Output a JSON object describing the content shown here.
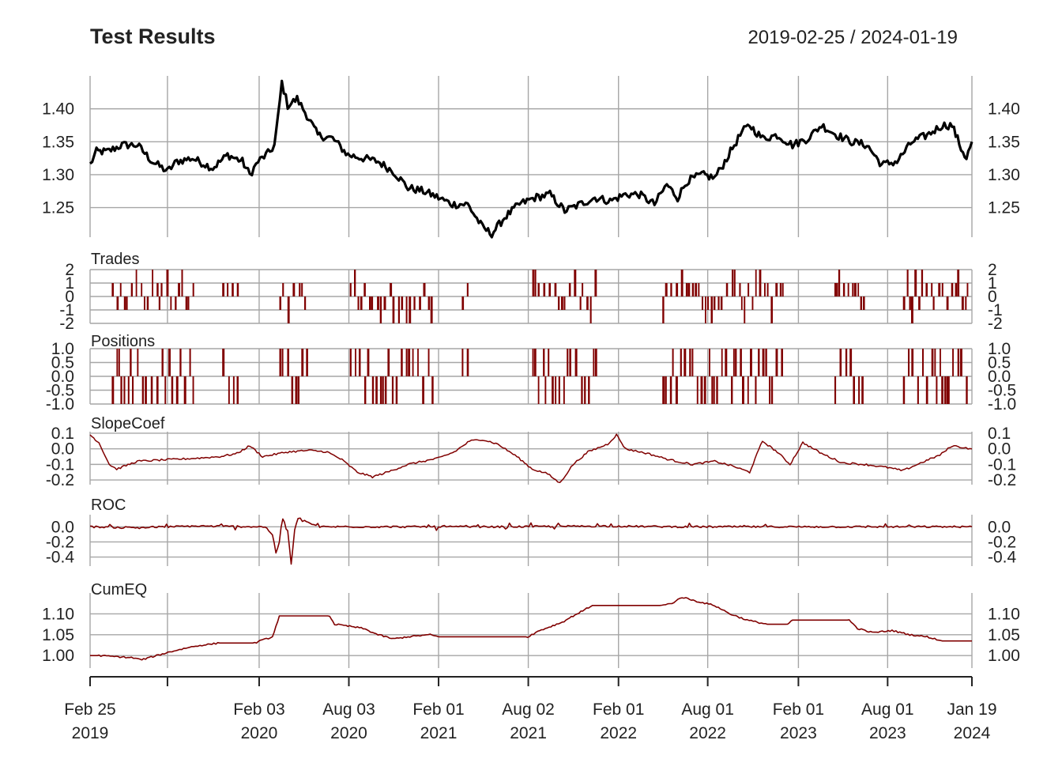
{
  "colors": {
    "price": "#000000",
    "indicator": "#800000",
    "grid": "#a6a6a6",
    "text": "#222222"
  },
  "chart_data": {
    "type": "line",
    "title": "Test Results",
    "date_range": "2019-02-25 / 2024-01-19",
    "grid": true,
    "x_ticks": [
      {
        "date": "2019-02-25",
        "month": "Feb 25",
        "year": "2019"
      },
      {
        "date": "2019-08-01",
        "month": "",
        "year": ""
      },
      {
        "date": "2020-02-03",
        "month": "Feb 03",
        "year": "2020"
      },
      {
        "date": "2020-08-03",
        "month": "Aug 03",
        "year": "2020"
      },
      {
        "date": "2021-02-01",
        "month": "Feb 01",
        "year": "2021"
      },
      {
        "date": "2021-08-02",
        "month": "Aug 02",
        "year": "2021"
      },
      {
        "date": "2022-02-01",
        "month": "Feb 01",
        "year": "2022"
      },
      {
        "date": "2022-08-01",
        "month": "Aug 01",
        "year": "2022"
      },
      {
        "date": "2023-02-01",
        "month": "Feb 01",
        "year": "2023"
      },
      {
        "date": "2023-08-01",
        "month": "Aug 01",
        "year": "2023"
      },
      {
        "date": "2024-01-19",
        "month": "Jan 19",
        "year": "2024"
      }
    ],
    "panels": [
      {
        "id": "price",
        "label": "",
        "style": "line",
        "color": "#000000",
        "ylim": [
          1.205,
          1.45
        ],
        "y_ticks": [
          "1.40",
          "1.35",
          "1.30",
          "1.25"
        ],
        "y_tick_values": [
          1.4,
          1.35,
          1.3,
          1.25
        ],
        "series": [
          [
            "2019-02-25",
            1.315
          ],
          [
            "2019-03-10",
            1.335
          ],
          [
            "2019-04-01",
            1.335
          ],
          [
            "2019-05-01",
            1.345
          ],
          [
            "2019-06-01",
            1.345
          ],
          [
            "2019-07-01",
            1.32
          ],
          [
            "2019-08-01",
            1.305
          ],
          [
            "2019-08-20",
            1.32
          ],
          [
            "2019-09-20",
            1.325
          ],
          [
            "2019-11-01",
            1.31
          ],
          [
            "2019-12-01",
            1.33
          ],
          [
            "2019-12-31",
            1.32
          ],
          [
            "2020-01-15",
            1.3
          ],
          [
            "2020-02-01",
            1.32
          ],
          [
            "2020-02-25",
            1.335
          ],
          [
            "2020-03-05",
            1.345
          ],
          [
            "2020-03-12",
            1.385
          ],
          [
            "2020-03-20",
            1.44
          ],
          [
            "2020-04-01",
            1.405
          ],
          [
            "2020-04-20",
            1.415
          ],
          [
            "2020-05-10",
            1.39
          ],
          [
            "2020-06-01",
            1.36
          ],
          [
            "2020-07-01",
            1.355
          ],
          [
            "2020-08-01",
            1.33
          ],
          [
            "2020-09-01",
            1.325
          ],
          [
            "2020-10-01",
            1.32
          ],
          [
            "2020-11-01",
            1.305
          ],
          [
            "2020-12-01",
            1.28
          ],
          [
            "2021-01-01",
            1.275
          ],
          [
            "2021-02-01",
            1.265
          ],
          [
            "2021-03-01",
            1.255
          ],
          [
            "2021-04-01",
            1.255
          ],
          [
            "2021-05-01",
            1.22
          ],
          [
            "2021-05-20",
            1.21
          ],
          [
            "2021-06-15",
            1.235
          ],
          [
            "2021-07-15",
            1.255
          ],
          [
            "2021-08-15",
            1.265
          ],
          [
            "2021-09-15",
            1.27
          ],
          [
            "2021-10-15",
            1.245
          ],
          [
            "2021-11-15",
            1.255
          ],
          [
            "2021-12-15",
            1.265
          ],
          [
            "2022-01-15",
            1.26
          ],
          [
            "2022-02-15",
            1.27
          ],
          [
            "2022-03-15",
            1.27
          ],
          [
            "2022-04-15",
            1.255
          ],
          [
            "2022-05-10",
            1.285
          ],
          [
            "2022-06-01",
            1.265
          ],
          [
            "2022-06-20",
            1.29
          ],
          [
            "2022-07-20",
            1.3
          ],
          [
            "2022-08-15",
            1.295
          ],
          [
            "2022-09-01",
            1.315
          ],
          [
            "2022-09-20",
            1.34
          ],
          [
            "2022-10-10",
            1.365
          ],
          [
            "2022-10-25",
            1.375
          ],
          [
            "2022-11-20",
            1.355
          ],
          [
            "2022-12-20",
            1.36
          ],
          [
            "2023-01-20",
            1.345
          ],
          [
            "2023-02-20",
            1.355
          ],
          [
            "2023-03-20",
            1.375
          ],
          [
            "2023-04-20",
            1.36
          ],
          [
            "2023-05-20",
            1.35
          ],
          [
            "2023-06-20",
            1.345
          ],
          [
            "2023-07-20",
            1.315
          ],
          [
            "2023-08-20",
            1.32
          ],
          [
            "2023-09-20",
            1.35
          ],
          [
            "2023-10-20",
            1.36
          ],
          [
            "2023-11-20",
            1.375
          ],
          [
            "2023-12-10",
            1.375
          ],
          [
            "2023-12-28",
            1.34
          ],
          [
            "2024-01-08",
            1.325
          ],
          [
            "2024-01-19",
            1.35
          ]
        ]
      },
      {
        "id": "trades",
        "label": "Trades",
        "style": "bars",
        "color": "#800000",
        "ylim": [
          -2,
          2
        ],
        "y_ticks": [
          "2",
          "1",
          "0",
          "-1",
          "-2"
        ],
        "y_tick_values": [
          2,
          1,
          0,
          -1,
          -2
        ],
        "active_periods": [
          [
            "2019-04-10",
            "2019-09-25"
          ],
          [
            "2019-11-20",
            "2019-12-20"
          ],
          [
            "2020-03-15",
            "2020-05-10"
          ],
          [
            "2020-08-05",
            "2021-01-25"
          ],
          [
            "2021-03-20",
            "2021-04-05"
          ],
          [
            "2021-08-10",
            "2021-12-20"
          ],
          [
            "2022-05-01",
            "2022-12-30"
          ],
          [
            "2023-04-15",
            "2023-06-15"
          ],
          [
            "2023-09-01",
            "2024-01-10"
          ]
        ]
      },
      {
        "id": "positions",
        "label": "Positions",
        "style": "bars",
        "color": "#800000",
        "ylim": [
          -1.0,
          1.0
        ],
        "y_ticks": [
          "1.0",
          "0.5",
          "0.0",
          "-0.5",
          "-1.0"
        ],
        "y_tick_values": [
          1.0,
          0.5,
          0.0,
          -0.5,
          -1.0
        ]
      },
      {
        "id": "slope",
        "label": "SlopeCoef",
        "style": "line",
        "color": "#800000",
        "ylim": [
          -0.23,
          0.11
        ],
        "y_ticks": [
          "0.1",
          "0.0",
          "-0.1",
          "-0.2"
        ],
        "y_tick_values": [
          0.1,
          0.0,
          -0.1,
          -0.2
        ],
        "series": [
          [
            "2019-02-25",
            0.09
          ],
          [
            "2019-03-15",
            0.04
          ],
          [
            "2019-04-05",
            -0.1
          ],
          [
            "2019-04-20",
            -0.13
          ],
          [
            "2019-06-01",
            -0.08
          ],
          [
            "2019-08-01",
            -0.07
          ],
          [
            "2019-10-01",
            -0.06
          ],
          [
            "2019-11-15",
            -0.05
          ],
          [
            "2019-12-20",
            -0.03
          ],
          [
            "2020-01-15",
            0.02
          ],
          [
            "2020-02-10",
            -0.05
          ],
          [
            "2020-04-01",
            -0.02
          ],
          [
            "2020-05-15",
            -0.01
          ],
          [
            "2020-06-20",
            -0.02
          ],
          [
            "2020-07-20",
            -0.07
          ],
          [
            "2020-08-20",
            -0.15
          ],
          [
            "2020-09-20",
            -0.18
          ],
          [
            "2020-10-20",
            -0.15
          ],
          [
            "2020-12-01",
            -0.1
          ],
          [
            "2021-01-01",
            -0.08
          ],
          [
            "2021-02-01",
            -0.06
          ],
          [
            "2021-03-05",
            -0.02
          ],
          [
            "2021-04-05",
            0.05
          ],
          [
            "2021-05-01",
            0.06
          ],
          [
            "2021-06-01",
            0.03
          ],
          [
            "2021-07-10",
            -0.05
          ],
          [
            "2021-08-10",
            -0.13
          ],
          [
            "2021-09-10",
            -0.16
          ],
          [
            "2021-10-05",
            -0.22
          ],
          [
            "2021-11-01",
            -0.1
          ],
          [
            "2021-12-01",
            -0.02
          ],
          [
            "2022-01-10",
            0.03
          ],
          [
            "2022-01-28",
            0.09
          ],
          [
            "2022-02-15",
            0.0
          ],
          [
            "2022-04-01",
            -0.03
          ],
          [
            "2022-05-15",
            -0.07
          ],
          [
            "2022-07-01",
            -0.1
          ],
          [
            "2022-08-15",
            -0.08
          ],
          [
            "2022-09-20",
            -0.11
          ],
          [
            "2022-10-25",
            -0.15
          ],
          [
            "2022-11-20",
            0.05
          ],
          [
            "2022-12-20",
            -0.02
          ],
          [
            "2023-01-15",
            -0.1
          ],
          [
            "2023-02-10",
            0.04
          ],
          [
            "2023-03-20",
            -0.03
          ],
          [
            "2023-05-01",
            -0.09
          ],
          [
            "2023-06-15",
            -0.1
          ],
          [
            "2023-08-01",
            -0.12
          ],
          [
            "2023-09-01",
            -0.14
          ],
          [
            "2023-10-15",
            -0.08
          ],
          [
            "2023-11-15",
            -0.04
          ],
          [
            "2023-12-10",
            0.02
          ],
          [
            "2024-01-19",
            0.0
          ]
        ]
      },
      {
        "id": "roc",
        "label": "ROC",
        "style": "line",
        "color": "#800000",
        "ylim": [
          -0.52,
          0.16
        ],
        "y_ticks": [
          "0.0",
          "-0.2",
          "-0.4"
        ],
        "y_tick_values": [
          0.0,
          -0.2,
          -0.4
        ],
        "series": [
          [
            "2019-02-25",
            0.0
          ],
          [
            "2019-06-01",
            -0.01
          ],
          [
            "2019-10-01",
            0.01
          ],
          [
            "2020-02-15",
            0.0
          ],
          [
            "2020-03-01",
            -0.1
          ],
          [
            "2020-03-08",
            -0.35
          ],
          [
            "2020-03-15",
            -0.2
          ],
          [
            "2020-03-22",
            0.1
          ],
          [
            "2020-04-01",
            -0.05
          ],
          [
            "2020-04-08",
            -0.5
          ],
          [
            "2020-04-15",
            -0.05
          ],
          [
            "2020-04-22",
            0.12
          ],
          [
            "2020-05-05",
            0.08
          ],
          [
            "2020-06-01",
            0.0
          ],
          [
            "2021-06-01",
            0.0
          ],
          [
            "2022-01-01",
            0.01
          ],
          [
            "2022-06-01",
            0.0
          ],
          [
            "2023-01-01",
            0.0
          ],
          [
            "2024-01-19",
            0.0
          ]
        ]
      },
      {
        "id": "cumeq",
        "label": "CumEQ",
        "style": "line",
        "color": "#800000",
        "ylim": [
          0.97,
          1.15
        ],
        "y_ticks": [
          "1.10",
          "1.05",
          "1.00"
        ],
        "y_tick_values": [
          1.1,
          1.05,
          1.0
        ],
        "series": [
          [
            "2019-02-25",
            1.0
          ],
          [
            "2019-03-15",
            1.0
          ],
          [
            "2019-05-20",
            0.995
          ],
          [
            "2019-06-10",
            0.99
          ],
          [
            "2019-07-10",
            1.0
          ],
          [
            "2019-08-10",
            1.01
          ],
          [
            "2019-09-15",
            1.02
          ],
          [
            "2019-10-10",
            1.025
          ],
          [
            "2019-11-15",
            1.03
          ],
          [
            "2020-01-25",
            1.03
          ],
          [
            "2020-02-05",
            1.035
          ],
          [
            "2020-03-01",
            1.045
          ],
          [
            "2020-03-15",
            1.095
          ],
          [
            "2020-06-25",
            1.095
          ],
          [
            "2020-07-05",
            1.075
          ],
          [
            "2020-08-05",
            1.07
          ],
          [
            "2020-09-01",
            1.065
          ],
          [
            "2020-10-01",
            1.05
          ],
          [
            "2020-11-01",
            1.04
          ],
          [
            "2020-12-01",
            1.045
          ],
          [
            "2021-01-15",
            1.05
          ],
          [
            "2021-02-01",
            1.045
          ],
          [
            "2021-08-01",
            1.045
          ],
          [
            "2021-08-25",
            1.06
          ],
          [
            "2021-10-10",
            1.08
          ],
          [
            "2021-11-01",
            1.095
          ],
          [
            "2021-12-10",
            1.12
          ],
          [
            "2022-01-15",
            1.12
          ],
          [
            "2022-04-30",
            1.12
          ],
          [
            "2022-05-20",
            1.125
          ],
          [
            "2022-06-10",
            1.14
          ],
          [
            "2022-07-10",
            1.13
          ],
          [
            "2022-08-15",
            1.12
          ],
          [
            "2022-09-15",
            1.1
          ],
          [
            "2022-10-20",
            1.085
          ],
          [
            "2022-11-30",
            1.075
          ],
          [
            "2023-01-10",
            1.075
          ],
          [
            "2023-01-20",
            1.085
          ],
          [
            "2023-05-15",
            1.085
          ],
          [
            "2023-06-01",
            1.065
          ],
          [
            "2023-07-01",
            1.055
          ],
          [
            "2023-08-10",
            1.06
          ],
          [
            "2023-09-15",
            1.05
          ],
          [
            "2023-10-20",
            1.045
          ],
          [
            "2023-11-20",
            1.035
          ],
          [
            "2023-12-01",
            1.035
          ],
          [
            "2024-01-19",
            1.035
          ]
        ]
      }
    ]
  }
}
